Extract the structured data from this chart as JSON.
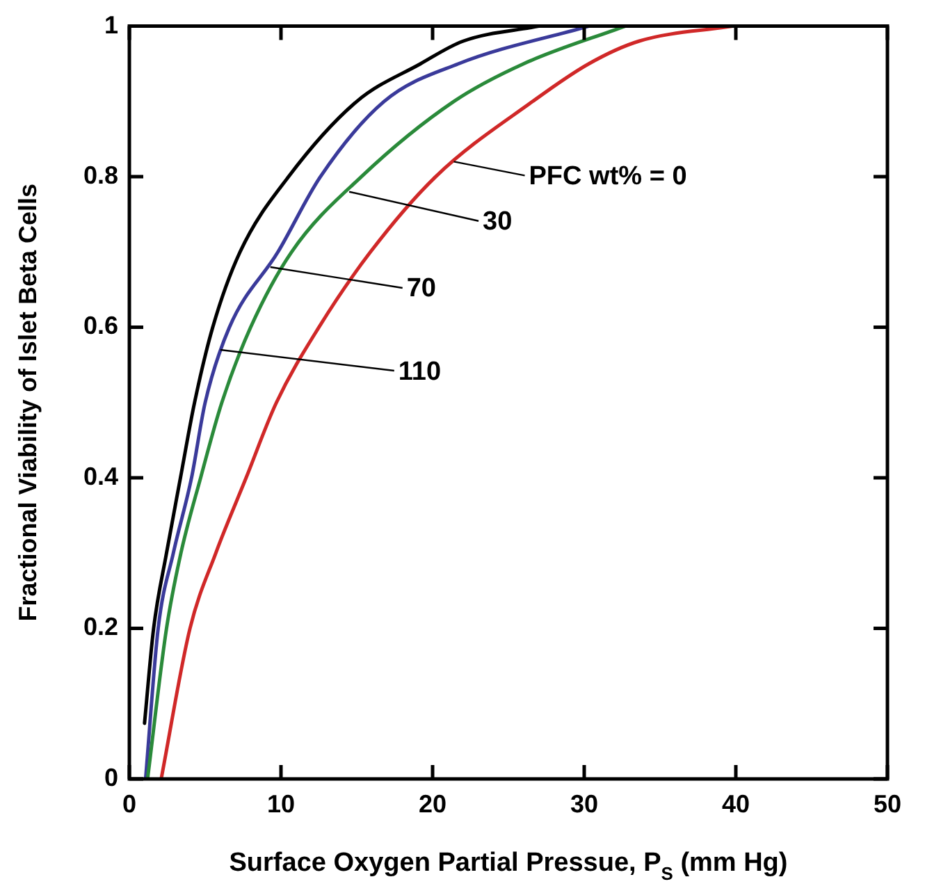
{
  "chart_data": {
    "type": "line",
    "xlabel": "Surface Oxygen Partial Pressue, P$_{S}$ (mm Hg)",
    "ylabel": "Fractional Viability of Islet Beta Cells",
    "xlim": [
      0,
      50
    ],
    "xticks": [
      0,
      10,
      20,
      30,
      40,
      50
    ],
    "ylim": [
      0,
      1
    ],
    "yticks": [
      0,
      0.2,
      0.4,
      0.6,
      0.8,
      1
    ],
    "grid": false,
    "legend": false,
    "marker": "none",
    "line_style": "solid",
    "annotations": [
      {
        "text": "PFC wt% = 0",
        "x": 21.4,
        "y": 0.82
      },
      {
        "text": "30",
        "x": 14.5,
        "y": 0.78
      },
      {
        "text": "70",
        "x": 9.3,
        "y": 0.68
      },
      {
        "text": "110",
        "x": 6.0,
        "y": 0.57
      }
    ],
    "series": [
      {
        "color": "#d02828",
        "x": [
          2.1,
          4.0,
          5.7,
          7.7,
          9.7,
          12.5,
          15.9,
          20.2,
          26.6,
          30.3,
          33.6,
          39.8
        ],
        "values": [
          0,
          0.2,
          0.3,
          0.4,
          0.5,
          0.6,
          0.7,
          0.8,
          0.9,
          0.95,
          0.98,
          1
        ]
      },
      {
        "color": "#2a8a3a",
        "x": [
          1.2,
          2.45,
          3.4,
          4.7,
          6.1,
          8.0,
          10.7,
          15.3,
          21.4,
          26.0,
          32.7
        ],
        "values": [
          0,
          0.2,
          0.3,
          0.4,
          0.5,
          0.6,
          0.7,
          0.8,
          0.9,
          0.95,
          1
        ]
      },
      {
        "color": "#3a3a9a",
        "x": [
          1.07,
          1.9,
          2.9,
          4.1,
          5.0,
          6.6,
          9.8,
          12.6,
          16.8,
          21.7,
          30.3
        ],
        "values": [
          0,
          0.2,
          0.3,
          0.4,
          0.5,
          0.6,
          0.7,
          0.8,
          0.9,
          0.95,
          1
        ]
      },
      {
        "color": "#000000",
        "x": [
          1.0,
          1.6,
          2.45,
          3.37,
          4.3,
          5.5,
          7.3,
          10.5,
          15.0,
          19.2,
          22.0,
          27.0
        ],
        "values": [
          0.074,
          0.2,
          0.3,
          0.4,
          0.5,
          0.6,
          0.7,
          0.8,
          0.9,
          0.95,
          0.98,
          1
        ]
      }
    ]
  }
}
